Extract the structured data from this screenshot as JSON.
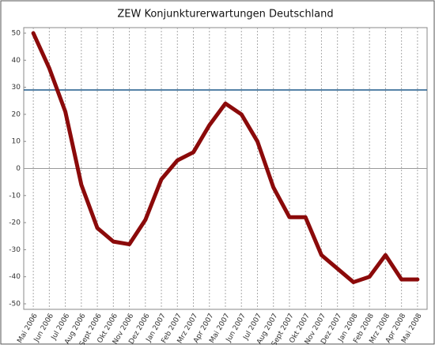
{
  "chart_data": {
    "type": "line",
    "title": "ZEW Konjunkturerwartungen Deutschland",
    "categories": [
      "Mai 2006",
      "Jun 2006",
      "Jul 2006",
      "Aug 2006",
      "Sept 2006",
      "Okt 2006",
      "Nov 2006",
      "Dez 2006",
      "Jan 2007",
      "Feb 2007",
      "Mrz 2007",
      "Apr 2007",
      "Mai 2007",
      "Jun 2007",
      "Jul 2007",
      "Aug 2007",
      "Sept 2007",
      "Okt 2007",
      "Nov 2007",
      "Dez 2007",
      "Jan 2008",
      "Feb 2008",
      "Mrz 2008",
      "Apr 2008",
      "Mai 2008"
    ],
    "values": [
      50,
      37,
      21,
      -6,
      -22,
      -27,
      -28,
      -19,
      -4,
      3,
      6,
      16,
      24,
      20,
      10,
      -7,
      -18,
      -18,
      -32,
      -37,
      -42,
      -40,
      -32,
      -41,
      -41
    ],
    "color": "#8b0a0a",
    "ylim": [
      -50,
      50
    ],
    "yticks": [
      -50,
      -40,
      -30,
      -20,
      -10,
      0,
      10,
      20,
      30,
      40,
      50
    ],
    "reference_line": {
      "value": 29,
      "color": "#1f5a8a"
    },
    "zero_line": true,
    "vertical_grid": true
  }
}
